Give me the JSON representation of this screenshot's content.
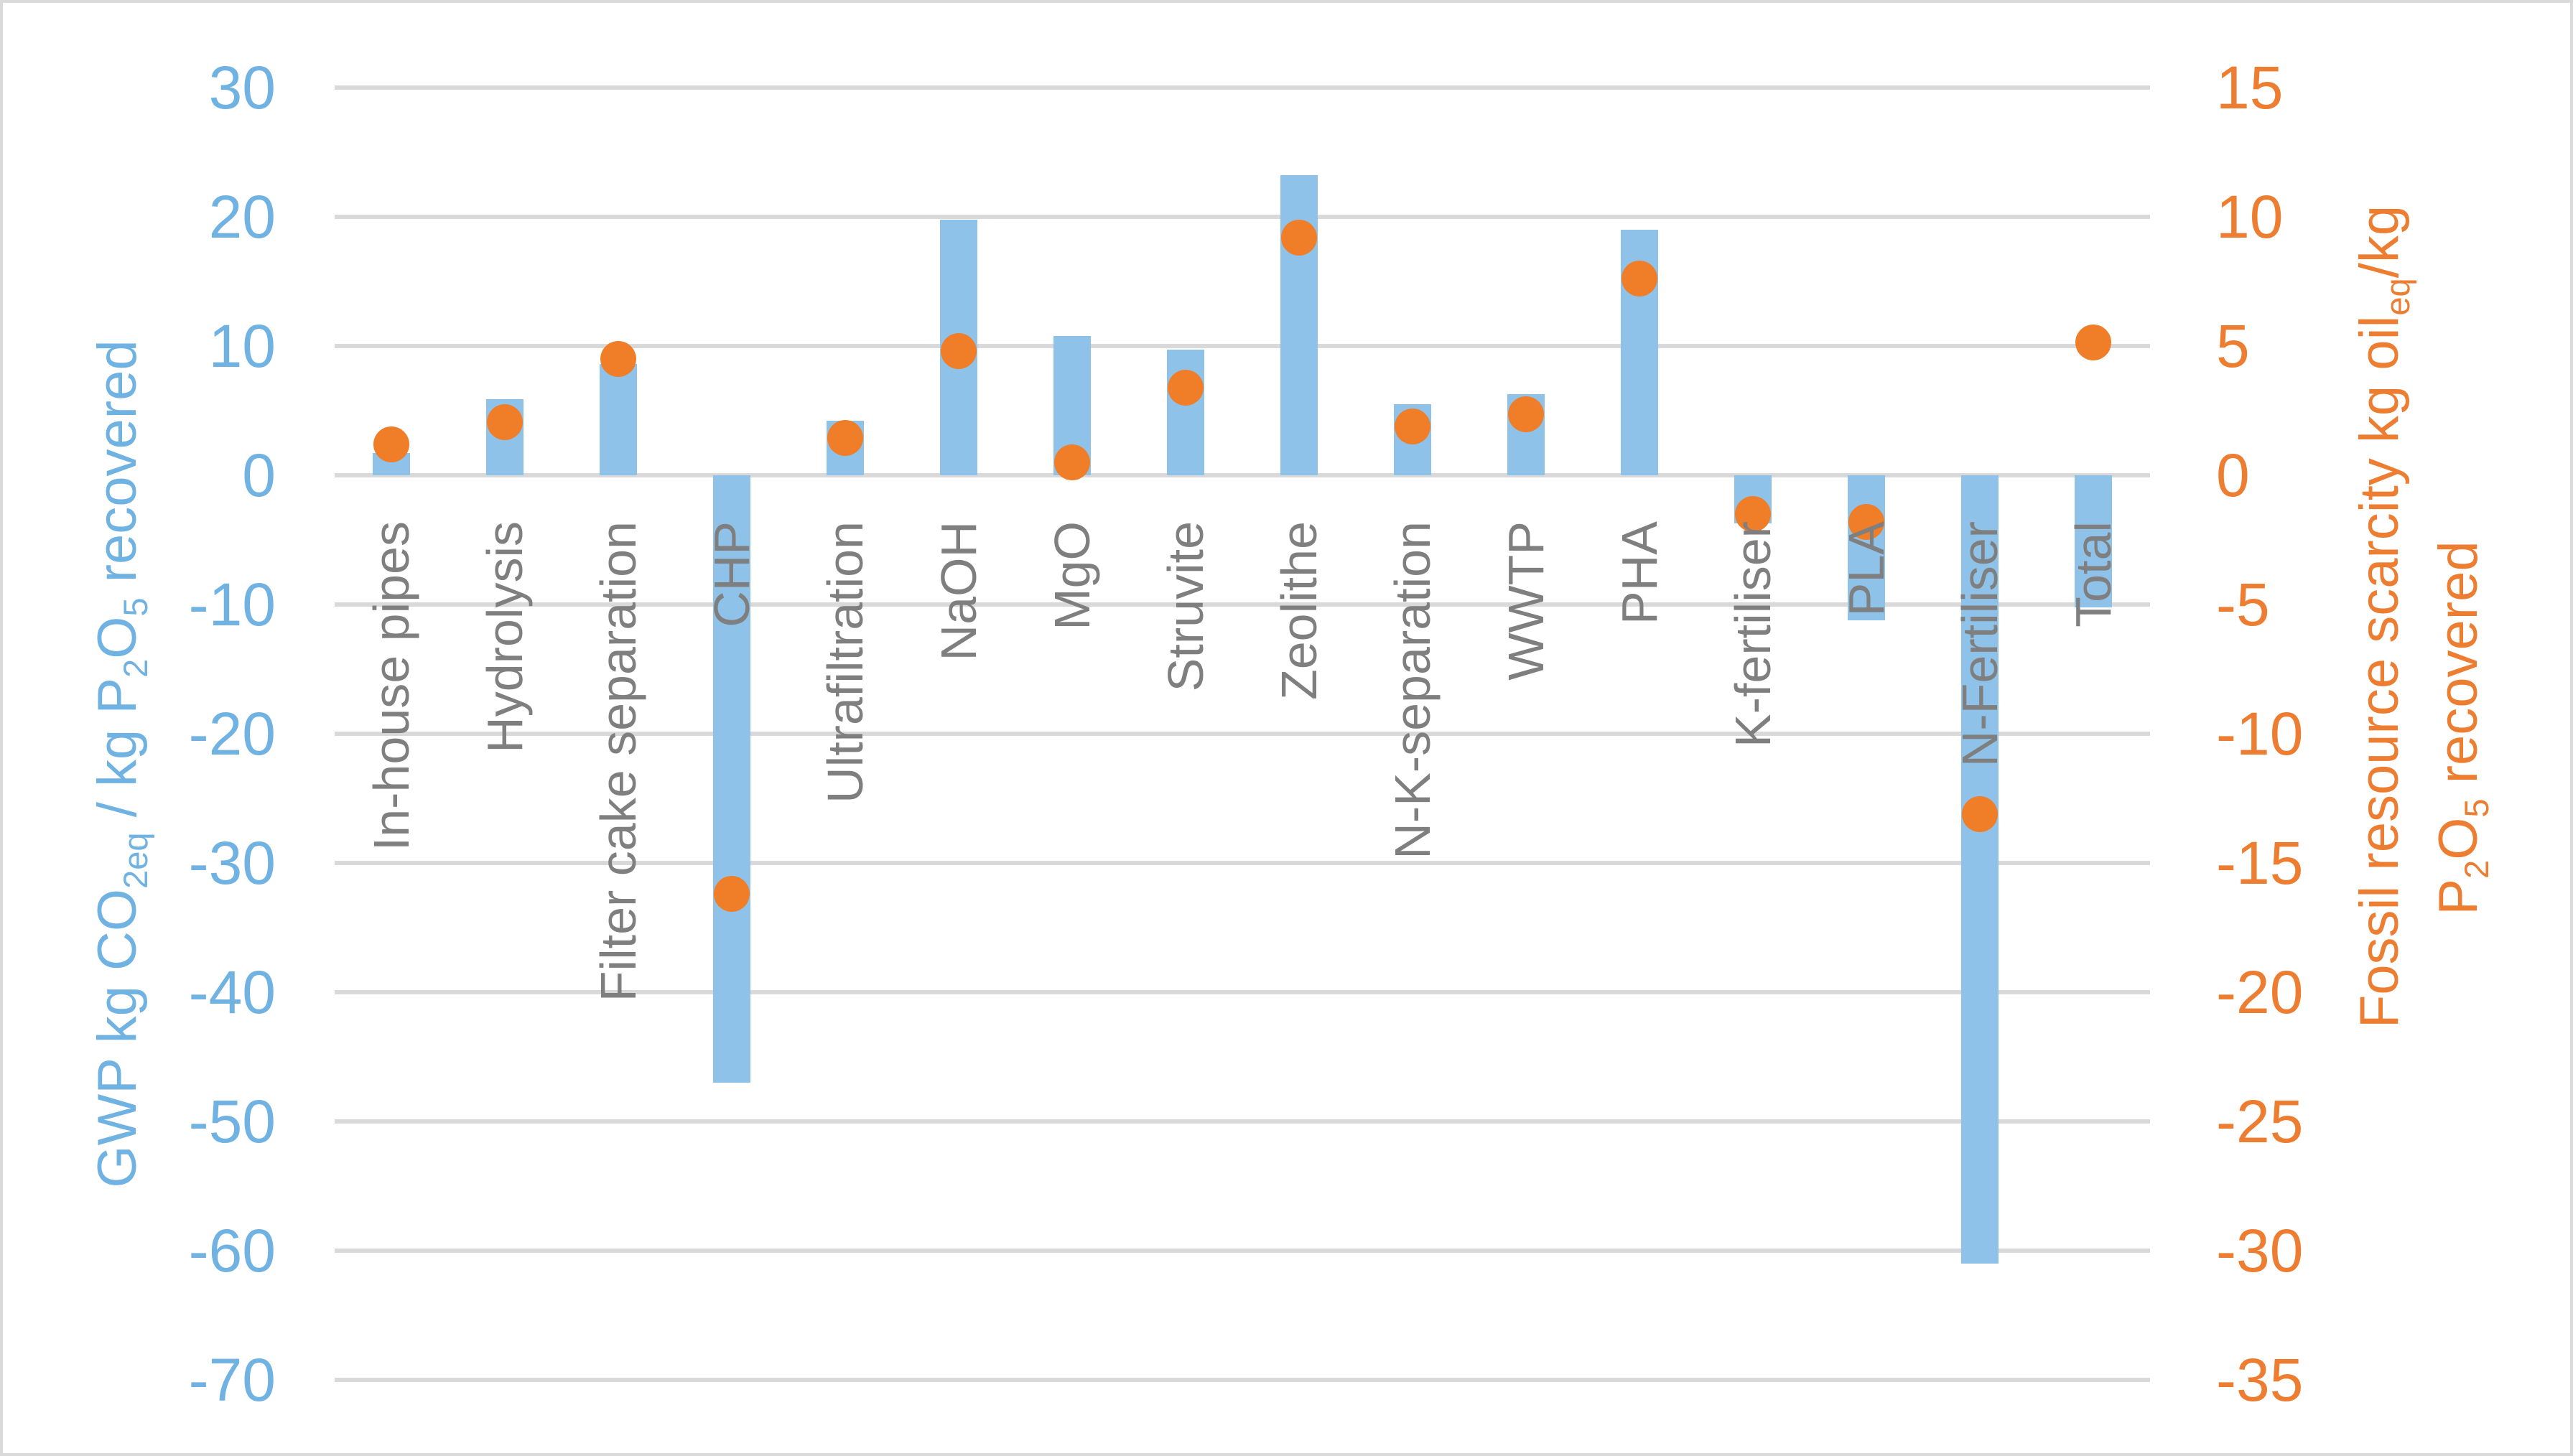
{
  "chart_data": {
    "type": "bar",
    "subtype": "combo-bar-and-scatter",
    "categories": [
      "In-house pipes",
      "Hydrolysis",
      "Filter cake separation",
      "CHP",
      "Ultrafiltration",
      "NaOH",
      "MgO",
      "Struvite",
      "Zeolithe",
      "N-K-separation",
      "WWTP",
      "PHA",
      "K-fertiliser",
      "PLA",
      "N-Fertiliser",
      "Total"
    ],
    "series": [
      {
        "name": "GWP kg CO2eq / kg P2O5 recovered",
        "type": "bar",
        "axis": "left",
        "values": [
          1.7,
          5.9,
          8.6,
          -47,
          4.2,
          19.8,
          10.8,
          9.7,
          23.2,
          5.5,
          6.3,
          19,
          -3.7,
          -11.2,
          -61,
          -10.2
        ]
      },
      {
        "name": "Fossil resource scarcity kg oil-eq/kg P2O5 recovered",
        "type": "scatter",
        "axis": "right",
        "values": [
          1.2,
          2.05,
          4.5,
          -16.2,
          1.45,
          4.8,
          0.5,
          3.4,
          9.2,
          1.9,
          2.35,
          7.6,
          -1.5,
          -1.8,
          -13.1,
          5.15
        ]
      }
    ],
    "left_axis": {
      "title": "GWP kg CO2eq / kg P2O5 recovered",
      "title_parts": [
        {
          "text": "GWP kg CO"
        },
        {
          "text": "2eq",
          "sub": true
        },
        {
          "text": " / kg P"
        },
        {
          "text": "2",
          "sub": true
        },
        {
          "text": "O"
        },
        {
          "text": "5",
          "sub": true
        },
        {
          "text": " recovered"
        }
      ],
      "min": -70,
      "max": 30,
      "step": 10,
      "ticks": [
        "30",
        "20",
        "10",
        "0",
        "-10",
        "-20",
        "-30",
        "-40",
        "-50",
        "-60",
        "-70"
      ]
    },
    "right_axis": {
      "title": "Fossil resource scarcity kg oil-eq/kg P2O5 recovered",
      "title_line1_parts": [
        {
          "text": "Fossil resource scarcity kg oil"
        },
        {
          "text": "eq",
          "sub": true
        },
        {
          "text": "/kg"
        }
      ],
      "title_line2_parts": [
        {
          "text": "P"
        },
        {
          "text": "2",
          "sub": true
        },
        {
          "text": "O"
        },
        {
          "text": "5",
          "sub": true
        },
        {
          "text": " recovered"
        }
      ],
      "min": -35,
      "max": 15,
      "step": 5,
      "ticks": [
        "15",
        "10",
        "5",
        "0",
        "-5",
        "-10",
        "-15",
        "-20",
        "-25",
        "-30",
        "-35"
      ]
    },
    "grid": true,
    "legend_position": "none",
    "colors": {
      "bar_fill": "#8FC2E8",
      "dot_fill": "#F07D28",
      "left_axis_text": "#70B2E2",
      "right_axis_text": "#ED7D31",
      "category_text": "#7F7F7F",
      "gridline": "#D9D9D9",
      "chart_border": "#DADADA"
    }
  }
}
